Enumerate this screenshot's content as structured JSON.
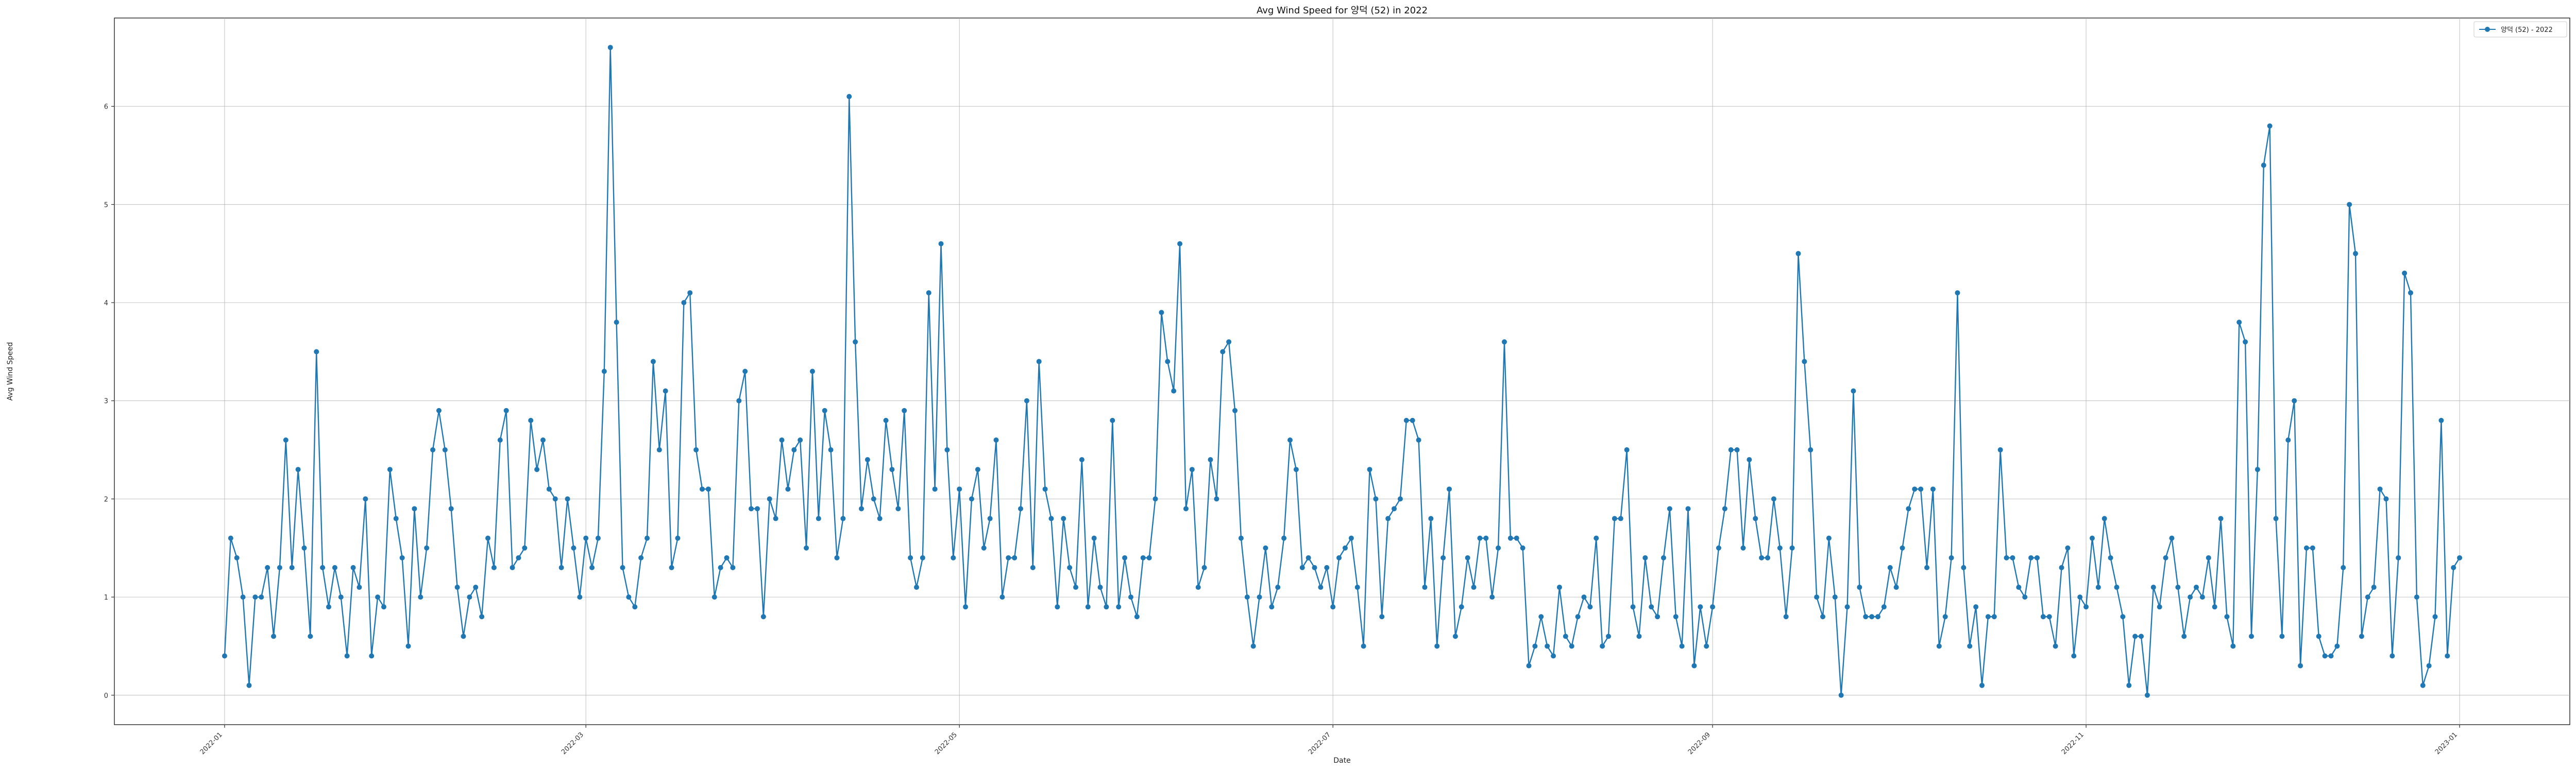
{
  "chart_data": {
    "type": "line",
    "title": "Avg Wind Speed for 양덕 (52) in 2022",
    "xlabel": "Date",
    "ylabel": "Avg Wind Speed",
    "x_start": "2022-01-01",
    "x_ticks": [
      "2022-01",
      "2022-03",
      "2022-05",
      "2022-07",
      "2022-09",
      "2022-11",
      "2023-01"
    ],
    "ylim": [
      -0.3,
      6.9
    ],
    "y_ticks": [
      0,
      1,
      2,
      3,
      4,
      5,
      6
    ],
    "grid": true,
    "legend_position": "top-right",
    "series": [
      {
        "name": "양덕 (52) - 2022",
        "color": "#1f77b4",
        "values": [
          0.4,
          1.6,
          1.4,
          1.0,
          0.1,
          1.0,
          1.0,
          1.3,
          0.6,
          1.3,
          2.6,
          1.3,
          2.3,
          1.5,
          0.6,
          3.5,
          1.3,
          0.9,
          1.3,
          1.0,
          0.4,
          1.3,
          1.1,
          2.0,
          0.4,
          1.0,
          0.9,
          2.3,
          1.8,
          1.4,
          0.5,
          1.9,
          1.0,
          1.5,
          2.5,
          2.9,
          2.5,
          1.9,
          1.1,
          0.6,
          1.0,
          1.1,
          0.8,
          1.6,
          1.3,
          2.6,
          2.9,
          1.3,
          1.4,
          1.5,
          2.8,
          2.3,
          2.6,
          2.1,
          2.0,
          1.3,
          2.0,
          1.5,
          1.0,
          1.6,
          1.3,
          1.6,
          3.3,
          6.6,
          3.8,
          1.3,
          1.0,
          0.9,
          1.4,
          1.6,
          3.4,
          2.5,
          3.1,
          1.3,
          1.6,
          4.0,
          4.1,
          2.5,
          2.1,
          2.1,
          1.0,
          1.3,
          1.4,
          1.3,
          3.0,
          3.3,
          1.9,
          1.9,
          0.8,
          2.0,
          1.8,
          2.6,
          2.1,
          2.5,
          2.6,
          1.5,
          3.3,
          1.8,
          2.9,
          2.5,
          1.4,
          1.8,
          6.1,
          3.6,
          1.9,
          2.4,
          2.0,
          1.8,
          2.8,
          2.3,
          1.9,
          2.9,
          1.4,
          1.1,
          1.4,
          4.1,
          2.1,
          4.6,
          2.5,
          1.4,
          2.1,
          0.9,
          2.0,
          2.3,
          1.5,
          1.8,
          2.6,
          1.0,
          1.4,
          1.4,
          1.9,
          3.0,
          1.3,
          3.4,
          2.1,
          1.8,
          0.9,
          1.8,
          1.3,
          1.1,
          2.4,
          0.9,
          1.6,
          1.1,
          0.9,
          2.8,
          0.9,
          1.4,
          1.0,
          0.8,
          1.4,
          1.4,
          2.0,
          3.9,
          3.4,
          3.1,
          4.6,
          1.9,
          2.3,
          1.1,
          1.3,
          2.4,
          2.0,
          3.5,
          3.6,
          2.9,
          1.6,
          1.0,
          0.5,
          1.0,
          1.5,
          0.9,
          1.1,
          1.6,
          2.6,
          2.3,
          1.3,
          1.4,
          1.3,
          1.1,
          1.3,
          0.9,
          1.4,
          1.5,
          1.6,
          1.1,
          0.5,
          2.3,
          2.0,
          0.8,
          1.8,
          1.9,
          2.0,
          2.8,
          2.8,
          2.6,
          1.1,
          1.8,
          0.5,
          1.4,
          2.1,
          0.6,
          0.9,
          1.4,
          1.1,
          1.6,
          1.6,
          1.0,
          1.5,
          3.6,
          1.6,
          1.6,
          1.5,
          0.3,
          0.5,
          0.8,
          0.5,
          0.4,
          1.1,
          0.6,
          0.5,
          0.8,
          1.0,
          0.9,
          1.6,
          0.5,
          0.6,
          1.8,
          1.8,
          2.5,
          0.9,
          0.6,
          1.4,
          0.9,
          0.8,
          1.4,
          1.9,
          0.8,
          0.5,
          1.9,
          0.3,
          0.9,
          0.5,
          0.9,
          1.5,
          1.9,
          2.5,
          2.5,
          1.5,
          2.4,
          1.8,
          1.4,
          1.4,
          2.0,
          1.5,
          0.8,
          1.5,
          4.5,
          3.4,
          2.5,
          1.0,
          0.8,
          1.6,
          1.0,
          0.0,
          0.9,
          3.1,
          1.1,
          0.8,
          0.8,
          0.8,
          0.9,
          1.3,
          1.1,
          1.5,
          1.9,
          2.1,
          2.1,
          1.3,
          2.1,
          0.5,
          0.8,
          1.4,
          4.1,
          1.3,
          0.5,
          0.9,
          0.1,
          0.8,
          0.8,
          2.5,
          1.4,
          1.4,
          1.1,
          1.0,
          1.4,
          1.4,
          0.8,
          0.8,
          0.5,
          1.3,
          1.5,
          0.4,
          1.0,
          0.9,
          1.6,
          1.1,
          1.8,
          1.4,
          1.1,
          0.8,
          0.1,
          0.6,
          0.6,
          0.0,
          1.1,
          0.9,
          1.4,
          1.6,
          1.1,
          0.6,
          1.0,
          1.1,
          1.0,
          1.4,
          0.9,
          1.8,
          0.8,
          0.5,
          3.8,
          3.6,
          0.6,
          2.3,
          5.4,
          5.8,
          1.8,
          0.6,
          2.6,
          3.0,
          0.3,
          1.5,
          1.5,
          0.6,
          0.4,
          0.4,
          0.5,
          1.3,
          5.0,
          4.5,
          0.6,
          1.0,
          1.1,
          2.1,
          2.0,
          0.4,
          1.4,
          4.3,
          4.1,
          1.0,
          0.1,
          0.3,
          0.8,
          2.8,
          0.4,
          1.3,
          1.4
        ]
      }
    ]
  }
}
